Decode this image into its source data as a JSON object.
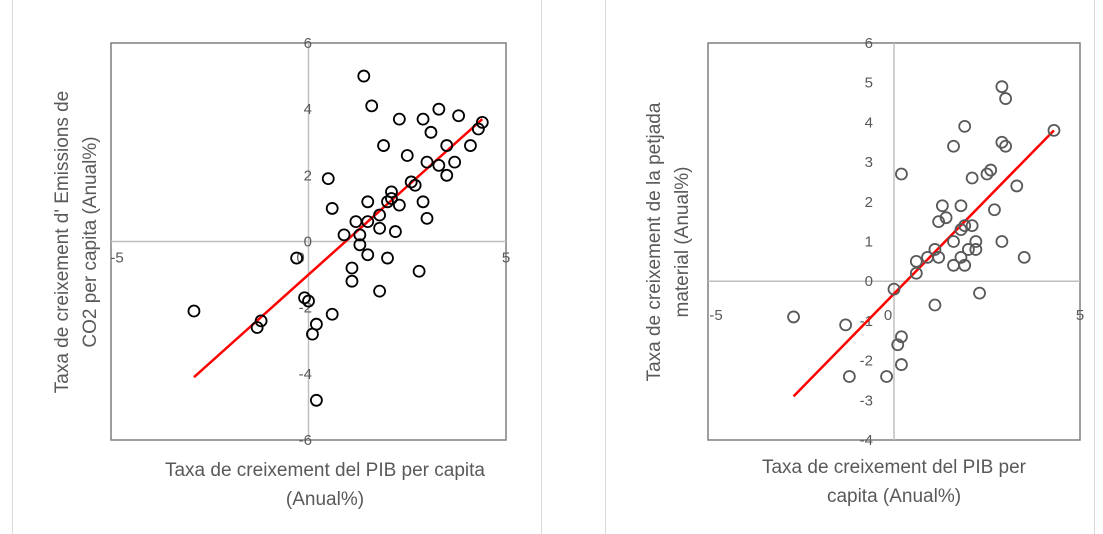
{
  "chart_data": [
    {
      "type": "scatter",
      "xlabel": [
        "Taxa de creixement del PIB per capita",
        "(Anual%)"
      ],
      "ylabel": [
        "Taxa de creixement d'  Emissions de",
        "CO2 per capita (Anual%)"
      ],
      "xlim": [
        -5,
        5
      ],
      "ylim": [
        -6,
        6
      ],
      "x_ticks": [
        "-5",
        "0",
        "5"
      ],
      "y_ticks": [
        "-6",
        "-4",
        "-2",
        "0",
        "2",
        "4",
        "6"
      ],
      "grid": false,
      "trendline": {
        "color": "#ff0000",
        "from": [
          -2.9,
          -4.1
        ],
        "to": [
          4.4,
          3.7
        ]
      },
      "points": [
        [
          -2.9,
          -2.1
        ],
        [
          -1.3,
          -2.6
        ],
        [
          -1.2,
          -2.4
        ],
        [
          -0.3,
          -0.5
        ],
        [
          -0.1,
          -1.7
        ],
        [
          0.0,
          -1.8
        ],
        [
          0.1,
          -2.8
        ],
        [
          0.2,
          -2.5
        ],
        [
          0.2,
          -4.8
        ],
        [
          0.5,
          1.9
        ],
        [
          0.6,
          1.0
        ],
        [
          0.6,
          -2.2
        ],
        [
          0.9,
          0.2
        ],
        [
          1.1,
          -0.8
        ],
        [
          1.1,
          -1.2
        ],
        [
          1.2,
          0.6
        ],
        [
          1.3,
          0.2
        ],
        [
          1.3,
          -0.1
        ],
        [
          1.4,
          5.0
        ],
        [
          1.5,
          0.6
        ],
        [
          1.5,
          -0.4
        ],
        [
          1.5,
          1.2
        ],
        [
          1.6,
          4.1
        ],
        [
          1.8,
          0.4
        ],
        [
          1.8,
          0.8
        ],
        [
          1.8,
          -1.5
        ],
        [
          1.9,
          2.9
        ],
        [
          2.0,
          1.2
        ],
        [
          2.0,
          -0.5
        ],
        [
          2.1,
          1.3
        ],
        [
          2.1,
          1.5
        ],
        [
          2.2,
          0.3
        ],
        [
          2.3,
          3.7
        ],
        [
          2.3,
          1.1
        ],
        [
          2.5,
          2.6
        ],
        [
          2.6,
          1.8
        ],
        [
          2.7,
          1.7
        ],
        [
          2.8,
          -0.9
        ],
        [
          2.9,
          3.7
        ],
        [
          2.9,
          1.2
        ],
        [
          3.0,
          0.7
        ],
        [
          3.0,
          2.4
        ],
        [
          3.1,
          3.3
        ],
        [
          3.3,
          4.0
        ],
        [
          3.3,
          2.3
        ],
        [
          3.5,
          2.9
        ],
        [
          3.5,
          2.0
        ],
        [
          3.7,
          2.4
        ],
        [
          3.8,
          3.8
        ],
        [
          4.1,
          2.9
        ],
        [
          4.3,
          3.4
        ],
        [
          4.4,
          3.6
        ]
      ]
    },
    {
      "type": "scatter",
      "xlabel": [
        "Taxa de creixement del PIB per",
        "capita (Anual%)"
      ],
      "ylabel": [
        "Taxa de creixement de la petjada",
        "material (Anual%)"
      ],
      "xlim": [
        -5,
        5
      ],
      "ylim": [
        -4,
        6
      ],
      "x_ticks": [
        "-5",
        "0",
        "5"
      ],
      "y_ticks": [
        "-4",
        "-3",
        "-2",
        "-1",
        "0",
        "1",
        "2",
        "3",
        "4",
        "5",
        "6"
      ],
      "grid": false,
      "trendline": {
        "color": "#ff0000",
        "from": [
          -2.7,
          -2.9
        ],
        "to": [
          4.3,
          3.8
        ]
      },
      "points": [
        [
          -2.7,
          -0.9
        ],
        [
          -1.3,
          -1.1
        ],
        [
          -1.2,
          -2.4
        ],
        [
          -0.2,
          -2.4
        ],
        [
          0.0,
          -0.2
        ],
        [
          0.1,
          -1.6
        ],
        [
          0.2,
          -2.1
        ],
        [
          0.2,
          -1.4
        ],
        [
          0.2,
          2.7
        ],
        [
          0.6,
          0.5
        ],
        [
          0.6,
          0.2
        ],
        [
          0.9,
          0.6
        ],
        [
          1.1,
          0.8
        ],
        [
          1.1,
          -0.6
        ],
        [
          1.2,
          1.5
        ],
        [
          1.2,
          0.6
        ],
        [
          1.3,
          1.9
        ],
        [
          1.4,
          1.6
        ],
        [
          1.6,
          3.4
        ],
        [
          1.6,
          1.0
        ],
        [
          1.6,
          0.4
        ],
        [
          1.8,
          0.6
        ],
        [
          1.8,
          1.9
        ],
        [
          1.8,
          1.3
        ],
        [
          1.9,
          3.9
        ],
        [
          1.9,
          1.4
        ],
        [
          1.9,
          0.4
        ],
        [
          2.0,
          0.8
        ],
        [
          2.1,
          2.6
        ],
        [
          2.1,
          1.4
        ],
        [
          2.2,
          1.0
        ],
        [
          2.2,
          0.8
        ],
        [
          2.3,
          -0.3
        ],
        [
          2.5,
          2.7
        ],
        [
          2.6,
          2.8
        ],
        [
          2.7,
          1.8
        ],
        [
          2.9,
          1.0
        ],
        [
          2.9,
          3.5
        ],
        [
          2.9,
          4.9
        ],
        [
          3.0,
          4.6
        ],
        [
          3.0,
          3.4
        ],
        [
          3.3,
          2.4
        ],
        [
          3.5,
          0.6
        ],
        [
          4.3,
          3.8
        ]
      ]
    }
  ]
}
